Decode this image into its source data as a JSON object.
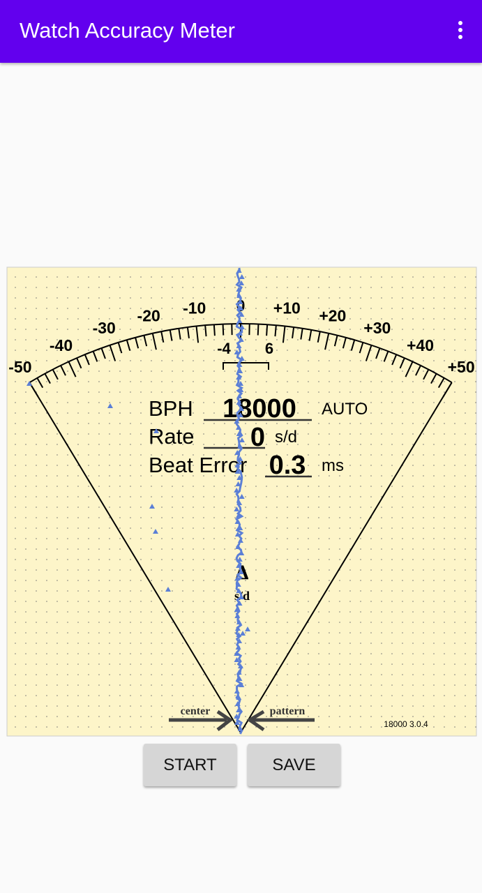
{
  "app_bar": {
    "title": "Watch Accuracy Meter"
  },
  "meter": {
    "scale_labels": [
      "-50",
      "-40",
      "-30",
      "-20",
      "-10",
      "0",
      "+10",
      "+20",
      "+30",
      "+40",
      "+50"
    ],
    "bracket_labels": [
      "-4",
      "6"
    ],
    "readings": {
      "bph_label": "BPH",
      "bph_value": "18000",
      "bph_mode": "AUTO",
      "rate_label": "Rate",
      "rate_value": "0",
      "rate_unit": "s/d",
      "beat_error_label": "Beat Error",
      "beat_error_value": "0.3",
      "beat_error_unit": "ms"
    },
    "delta_symbol": "Δ",
    "delta_unit": "s/d",
    "center_label": "center",
    "pattern_label": "pattern",
    "version": "18000 3.0.4"
  },
  "buttons": {
    "start": "START",
    "save": "SAVE"
  }
}
